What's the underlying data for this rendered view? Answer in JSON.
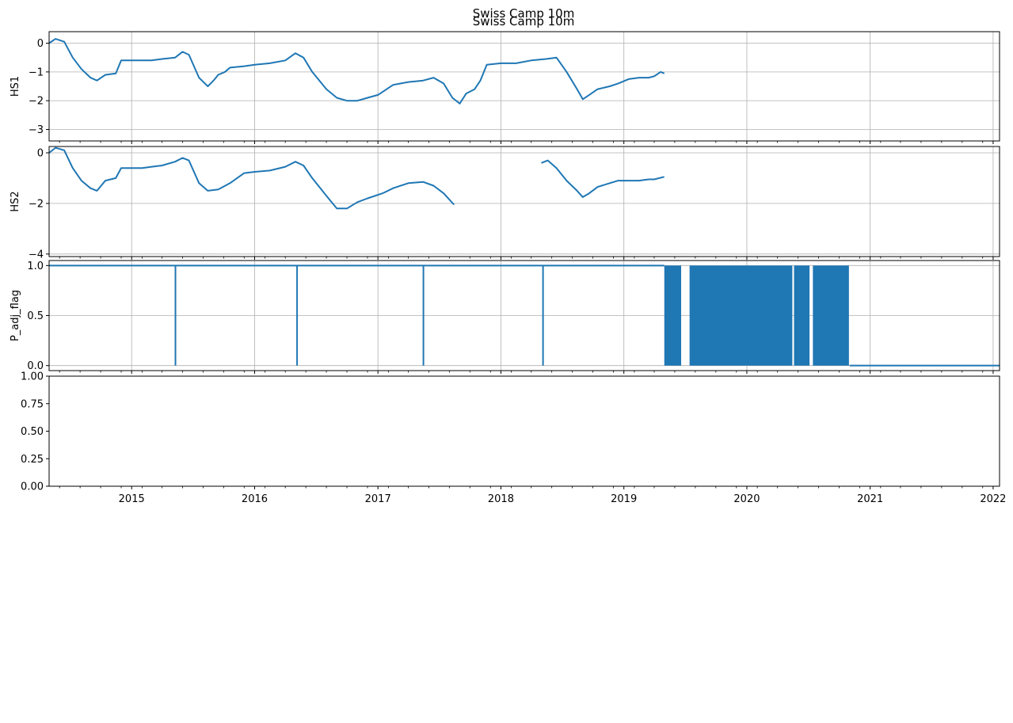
{
  "titles": [
    "Swiss Camp 10m",
    "Swiss Camp 10m"
  ],
  "colors": {
    "series": "#1f77b4",
    "grid": "#b0b0b0",
    "axes": "#000000"
  },
  "chart_data": [
    {
      "type": "line",
      "ylabel": "HS1",
      "ylim": [
        -3.4,
        0.4
      ],
      "yticks": [
        0,
        -1,
        -2,
        -3
      ],
      "grid": true,
      "xticks_shown": false,
      "series": [
        {
          "x": [
            "2014-05-01",
            "2014-05-20",
            "2014-06-15",
            "2014-07-10",
            "2014-08-05",
            "2014-09-01",
            "2014-09-20",
            "2014-10-15",
            "2014-11-15",
            "2014-12-01",
            "2015-02-01",
            "2015-03-01",
            "2015-04-01",
            "2015-05-10",
            "2015-06-01",
            "2015-06-20",
            "2015-07-20",
            "2015-08-15",
            "2015-09-01",
            "2015-09-15",
            "2015-10-05",
            "2015-10-20",
            "2015-12-01",
            "2016-01-01",
            "2016-02-15",
            "2016-04-01",
            "2016-05-01",
            "2016-05-25",
            "2016-06-20",
            "2016-08-01",
            "2016-09-01",
            "2016-10-01",
            "2016-11-01",
            "2016-12-01",
            "2017-01-01",
            "2017-02-15",
            "2017-04-01",
            "2017-05-15",
            "2017-06-15",
            "2017-07-15",
            "2017-08-10",
            "2017-09-01",
            "2017-09-20",
            "2017-10-15",
            "2017-11-01",
            "2017-11-20",
            "2018-01-01",
            "2018-02-15",
            "2018-04-01",
            "2018-05-15",
            "2018-06-15",
            "2018-07-15",
            "2018-08-15",
            "2018-09-01",
            "2018-09-20",
            "2018-10-15",
            "2018-11-20",
            "2018-12-15",
            "2019-01-15",
            "2019-02-15",
            "2019-03-15",
            "2019-04-01",
            "2019-04-20",
            "2019-05-01"
          ],
          "y": [
            0.0,
            0.15,
            0.05,
            -0.5,
            -0.9,
            -1.2,
            -1.3,
            -1.1,
            -1.05,
            -0.6,
            -0.6,
            -0.6,
            -0.55,
            -0.5,
            -0.3,
            -0.4,
            -1.2,
            -1.5,
            -1.3,
            -1.1,
            -1.0,
            -0.85,
            -0.8,
            -0.75,
            -0.7,
            -0.6,
            -0.35,
            -0.5,
            -1.0,
            -1.6,
            -1.9,
            -2.0,
            -2.0,
            -1.9,
            -1.8,
            -1.45,
            -1.35,
            -1.3,
            -1.2,
            -1.4,
            -1.9,
            -2.1,
            -1.75,
            -1.6,
            -1.3,
            -0.75,
            -0.7,
            -0.7,
            -0.6,
            -0.55,
            -0.5,
            -1.0,
            -1.6,
            -1.95,
            -1.8,
            -1.6,
            -1.5,
            -1.4,
            -1.25,
            -1.2,
            -1.2,
            -1.15,
            -1.0,
            -1.05
          ]
        }
      ]
    },
    {
      "type": "line",
      "ylabel": "HS2",
      "ylim": [
        -4.1,
        0.25
      ],
      "yticks": [
        0,
        -2,
        -4
      ],
      "grid": true,
      "xticks_shown": false,
      "series": [
        {
          "x": [
            "2014-05-01",
            "2014-05-20",
            "2014-06-15",
            "2014-07-10",
            "2014-08-05",
            "2014-09-01",
            "2014-09-20",
            "2014-10-15",
            "2014-11-15",
            "2014-12-01",
            "2015-02-01",
            "2015-03-01",
            "2015-04-01",
            "2015-05-10",
            "2015-06-01",
            "2015-06-20",
            "2015-07-20",
            "2015-08-15",
            "2015-09-15",
            "2015-10-20",
            "2015-12-01",
            "2016-01-01",
            "2016-02-15",
            "2016-04-01",
            "2016-05-01",
            "2016-05-25",
            "2016-06-20",
            "2016-08-01",
            "2016-09-01",
            "2016-10-01",
            "2016-11-01",
            "2016-12-01",
            "2017-01-15",
            "2017-02-15",
            "2017-04-01",
            "2017-05-15",
            "2017-06-15",
            "2017-07-15",
            "2017-08-15",
            null,
            "2018-05-01",
            "2018-05-20",
            "2018-06-15",
            "2018-07-15",
            "2018-08-15",
            "2018-09-01",
            "2018-09-20",
            "2018-10-15",
            "2018-11-20",
            "2018-12-15",
            "2019-01-15",
            "2019-02-15",
            "2019-03-15",
            "2019-04-01",
            "2019-05-01"
          ],
          "y": [
            0.0,
            0.2,
            0.1,
            -0.6,
            -1.1,
            -1.4,
            -1.5,
            -1.1,
            -1.0,
            -0.6,
            -0.6,
            -0.55,
            -0.5,
            -0.35,
            -0.2,
            -0.3,
            -1.2,
            -1.5,
            -1.45,
            -1.2,
            -0.8,
            -0.75,
            -0.7,
            -0.55,
            -0.35,
            -0.5,
            -1.0,
            -1.7,
            -2.2,
            -2.2,
            -1.95,
            -1.8,
            -1.6,
            -1.4,
            -1.2,
            -1.15,
            -1.3,
            -1.6,
            -2.05,
            null,
            -0.4,
            -0.3,
            -0.6,
            -1.1,
            -1.5,
            -1.75,
            -1.6,
            -1.35,
            -1.2,
            -1.1,
            -1.1,
            -1.1,
            -1.05,
            -1.05,
            -0.95
          ]
        }
      ]
    },
    {
      "type": "line",
      "ylabel": "P_adj_flag",
      "ylim": [
        -0.05,
        1.05
      ],
      "yticks": [
        1.0,
        0.5,
        0.0
      ],
      "ytick_labels": [
        "1.0",
        "0.5",
        "0.0"
      ],
      "grid": true,
      "xticks_shown": false,
      "flag_level": 1,
      "flag_until": "2019-05-01",
      "dips_to_zero": [
        "2015-05-11",
        "2016-05-06",
        "2017-05-16",
        "2018-05-06"
      ],
      "rapid_toggle_blocks": [
        [
          "2019-05-01",
          "2019-06-20"
        ],
        [
          "2019-07-15",
          "2020-05-15"
        ],
        [
          "2020-05-20",
          "2020-07-05"
        ],
        [
          "2020-07-15",
          "2020-10-30"
        ]
      ],
      "zero_after": "2020-11-01",
      "x_end": "2022-01-20"
    },
    {
      "type": "line",
      "ylabel": "",
      "ylim": [
        0.0,
        1.0
      ],
      "yticks": [
        1.0,
        0.75,
        0.5,
        0.25,
        0.0
      ],
      "ytick_labels": [
        "1.00",
        "0.75",
        "0.50",
        "0.25",
        "0.00"
      ],
      "grid": false,
      "xticks_shown": true,
      "series": []
    }
  ],
  "xaxis": {
    "xlim": [
      "2014-05-01",
      "2022-01-20"
    ],
    "year_ticks": [
      "2015",
      "2016",
      "2017",
      "2018",
      "2019",
      "2020",
      "2021",
      "2022"
    ]
  }
}
